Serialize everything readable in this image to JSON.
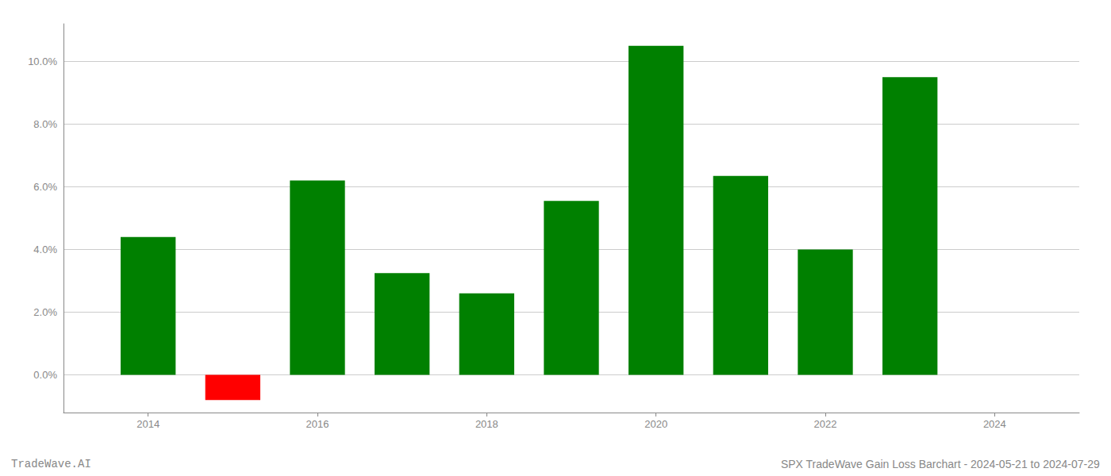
{
  "chart_data": {
    "type": "bar",
    "x": [
      2014,
      2015,
      2016,
      2017,
      2018,
      2019,
      2020,
      2021,
      2022,
      2023,
      2024
    ],
    "values": [
      4.4,
      -0.8,
      6.2,
      3.25,
      2.6,
      5.55,
      10.5,
      6.35,
      4.0,
      9.5,
      0.0
    ],
    "colors": [
      "#008000",
      "#ff0000",
      "#008000",
      "#008000",
      "#008000",
      "#008000",
      "#008000",
      "#008000",
      "#008000",
      "#008000",
      "#008000"
    ],
    "xlim": [
      2013,
      2025
    ],
    "xticks": [
      2014,
      2016,
      2018,
      2020,
      2022,
      2024
    ],
    "ylim": [
      -1.2,
      11.2
    ],
    "yticks": [
      {
        "value": 0.0,
        "label": "0.0%"
      },
      {
        "value": 2.0,
        "label": "2.0%"
      },
      {
        "value": 4.0,
        "label": "4.0%"
      },
      {
        "value": 6.0,
        "label": "6.0%"
      },
      {
        "value": 8.0,
        "label": "8.0%"
      },
      {
        "value": 10.0,
        "label": "10.0%"
      }
    ],
    "grid": true,
    "annotations": [
      "TradeWave.AI",
      "SPX TradeWave Gain Loss Barchart - 2024-05-21 to 2024-07-29"
    ]
  }
}
